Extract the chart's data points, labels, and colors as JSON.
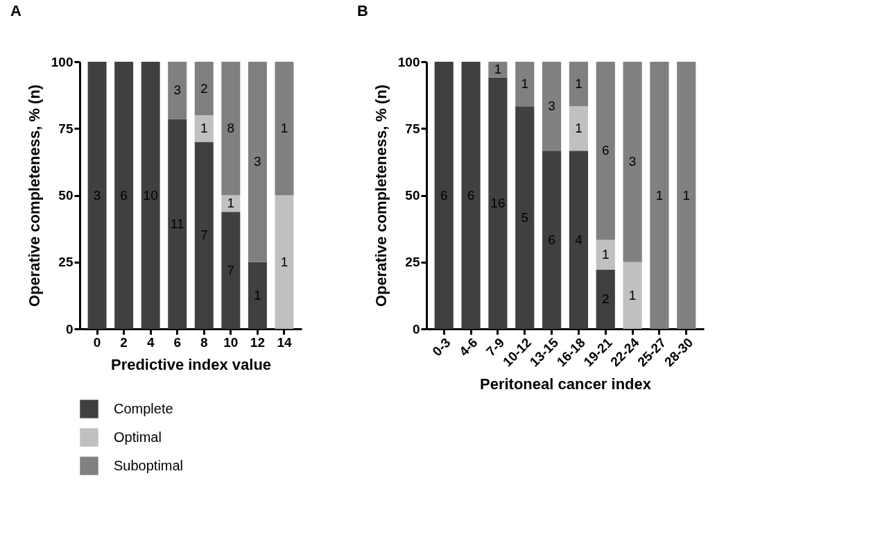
{
  "chart_data": [
    {
      "type": "bar",
      "title": "A",
      "xlabel": "Predictive index value",
      "ylabel": "Operative completeness, % (n)",
      "stacked": true,
      "legend": "bottom",
      "grid": false,
      "categories": [
        "0",
        "2",
        "4",
        "6",
        "8",
        "10",
        "12",
        "14"
      ],
      "ylim": [
        0,
        100
      ],
      "yticks": [
        0,
        25,
        50,
        75,
        100
      ],
      "series": [
        {
          "name": "Complete",
          "color": "#404040",
          "values": [
            100,
            100,
            100,
            78.6,
            70,
            43.8,
            25,
            null
          ]
        },
        {
          "name": "Optimal",
          "color": "#c0c0c0",
          "values": [
            null,
            null,
            null,
            null,
            10,
            6.2,
            null,
            50
          ]
        },
        {
          "name": "Suboptimal",
          "color": "#808080",
          "values": [
            null,
            null,
            null,
            21.4,
            20,
            50,
            75,
            50
          ]
        }
      ],
      "annotations": [
        "3",
        "6",
        "10",
        "11",
        "3",
        "7",
        "1",
        "2",
        "7",
        "1",
        "8",
        "1",
        "3",
        "1",
        "1"
      ]
    },
    {
      "type": "bar",
      "title": "B",
      "xlabel": "Peritoneal cancer index",
      "ylabel": "Operative completeness, % (n)",
      "stacked": true,
      "grid": false,
      "categories": [
        "0-3",
        "4-6",
        "7-9",
        "10-12",
        "13-15",
        "16-18",
        "19-21",
        "22-24",
        "25-27",
        "28-30"
      ],
      "ylim": [
        0,
        100
      ],
      "yticks": [
        0,
        25,
        50,
        75,
        100
      ],
      "series": [
        {
          "color": "#404040",
          "values": [
            100,
            100,
            94.1,
            83.3,
            66.7,
            66.7,
            22.2,
            null,
            null,
            null
          ]
        },
        {
          "color": "#c0c0c0",
          "values": [
            null,
            null,
            null,
            null,
            null,
            16.7,
            11.1,
            25,
            null,
            null
          ]
        },
        {
          "color": "#808080",
          "values": [
            null,
            null,
            5.9,
            16.7,
            33.3,
            16.6,
            66.7,
            75,
            100,
            100
          ]
        }
      ],
      "annotations": [
        "6",
        "6",
        "16",
        "1",
        "5",
        "1",
        "6",
        "3",
        "4",
        "1",
        "1",
        "2",
        "1",
        "6",
        "1",
        "3",
        "1",
        "1"
      ]
    }
  ]
}
